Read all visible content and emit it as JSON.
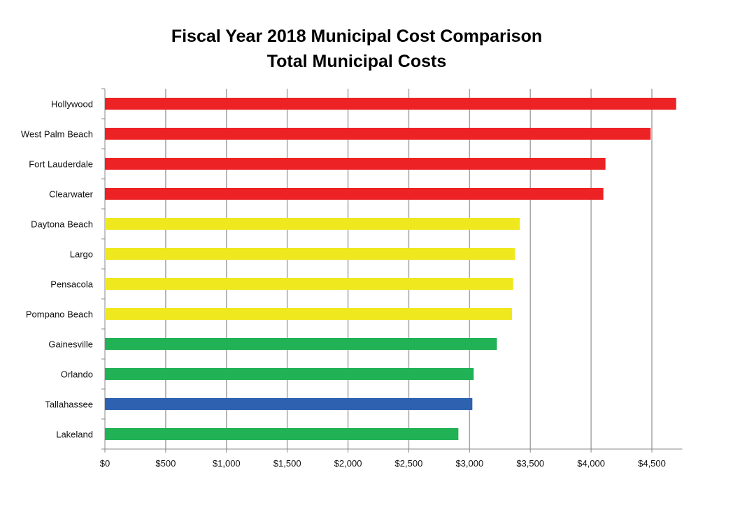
{
  "chart_data": {
    "type": "bar",
    "orientation": "horizontal",
    "title": "Fiscal Year 2018 Municipal Cost Comparison",
    "subtitle": "Total Municipal Costs",
    "xlabel": "",
    "ylabel": "",
    "xlim": [
      0,
      4750
    ],
    "grid": true,
    "categories": [
      "Hollywood",
      "West Palm Beach",
      "Fort Lauderdale",
      "Clearwater",
      "Daytona Beach",
      "Largo",
      "Pensacola",
      "Pompano Beach",
      "Gainesville",
      "Orlando",
      "Tallahassee",
      "Lakeland"
    ],
    "values": [
      4700,
      4490,
      4118,
      4101,
      3414,
      3372,
      3359,
      3349,
      3225,
      3034,
      3023,
      2908
    ],
    "bar_colors": [
      "#ed2224",
      "#ed2224",
      "#ed2224",
      "#ed2224",
      "#efe81f",
      "#efe81f",
      "#efe81f",
      "#efe81f",
      "#20b255",
      "#20b255",
      "#2e62b0",
      "#20b255"
    ],
    "x_ticks": [
      0,
      500,
      1000,
      1500,
      2000,
      2500,
      3000,
      3500,
      4000,
      4500
    ],
    "x_tick_labels": [
      "$0",
      "$500",
      "$1,000",
      "$1,500",
      "$2,000",
      "$2,500",
      "$3,000",
      "$3,500",
      "$4,000",
      "$4,500"
    ]
  }
}
